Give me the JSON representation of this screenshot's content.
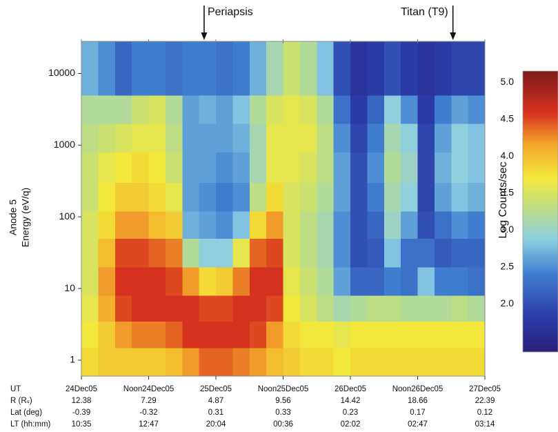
{
  "chart_data": {
    "type": "heatmap",
    "y_label_lines": [
      "Anode 5",
      "Energy (eV/q)"
    ],
    "colorbar_label": "Log Counts/sec",
    "xlim": [
      0,
      72
    ],
    "xticks": [
      {
        "value": 0,
        "label": "24Dec05"
      },
      {
        "value": 12,
        "label": "Noon24Dec05"
      },
      {
        "value": 24,
        "label": "25Dec05"
      },
      {
        "value": 36,
        "label": "Noon25Dec05"
      },
      {
        "value": 48,
        "label": "26Dec05"
      },
      {
        "value": 60,
        "label": "Noon26Dec05"
      },
      {
        "value": 72,
        "label": "27Dec05"
      }
    ],
    "ylim": [
      0.6,
      28000
    ],
    "ylog": true,
    "yticks": [
      1,
      10,
      100,
      1000,
      10000
    ],
    "zlim": [
      1.35,
      5.15
    ],
    "zticks": [
      {
        "value": 2,
        "label": "2.0"
      },
      {
        "value": 2.5,
        "label": "2.5"
      },
      {
        "value": 3,
        "label": "3.0"
      },
      {
        "value": 3.5,
        "label": "3.5"
      },
      {
        "value": 4,
        "label": "4.0"
      },
      {
        "value": 4.5,
        "label": "4.5"
      },
      {
        "value": 5,
        "label": "5.0"
      }
    ],
    "colormap": "jet",
    "x_bins": [
      0,
      3,
      6,
      9,
      12,
      15,
      18,
      21,
      24,
      27,
      30,
      33,
      36,
      39,
      42,
      45,
      48,
      51,
      54,
      57,
      60,
      63,
      66,
      69,
      72
    ],
    "y_bins": [
      0.6,
      1.5,
      3.5,
      8,
      20,
      50,
      120,
      300,
      800,
      2000,
      5000,
      28000
    ],
    "z": [
      [
        3.8,
        3.7,
        3.6,
        3.5,
        3.5,
        3.5,
        3.4,
        3.4,
        3.3,
        3.2,
        2.7
      ],
      [
        3.9,
        3.9,
        4.1,
        4.2,
        4.0,
        3.8,
        3.7,
        3.6,
        3.4,
        3.2,
        2.5
      ],
      [
        3.9,
        4.2,
        4.5,
        4.6,
        4.5,
        4.2,
        3.9,
        3.7,
        3.5,
        3.2,
        2.2
      ],
      [
        3.9,
        4.3,
        4.6,
        4.6,
        4.5,
        4.2,
        3.9,
        3.8,
        3.6,
        3.4,
        2.4
      ],
      [
        3.9,
        4.3,
        4.6,
        4.6,
        4.4,
        4.0,
        3.8,
        3.7,
        3.6,
        3.5,
        2.4
      ],
      [
        4.0,
        4.4,
        4.6,
        4.5,
        4.3,
        3.9,
        3.6,
        3.4,
        3.3,
        3.2,
        2.3
      ],
      [
        4.2,
        4.6,
        4.6,
        4.2,
        3.2,
        2.7,
        2.6,
        2.6,
        2.6,
        2.6,
        2.4
      ],
      [
        4.4,
        4.6,
        4.5,
        3.8,
        2.9,
        2.6,
        2.5,
        2.6,
        2.6,
        2.7,
        2.4
      ],
      [
        4.4,
        4.6,
        4.5,
        3.9,
        2.9,
        2.5,
        2.4,
        2.5,
        2.6,
        2.6,
        2.3
      ],
      [
        4.3,
        4.6,
        4.6,
        4.3,
        3.6,
        2.8,
        2.5,
        2.6,
        2.7,
        2.8,
        2.4
      ],
      [
        4.2,
        4.5,
        4.6,
        4.6,
        4.4,
        3.8,
        3.3,
        3.1,
        3.1,
        3.2,
        2.7
      ],
      [
        4.0,
        4.2,
        4.5,
        4.6,
        4.5,
        4.2,
        3.8,
        3.6,
        3.6,
        3.5,
        3.1
      ],
      [
        3.9,
        3.8,
        3.7,
        3.6,
        3.5,
        3.5,
        3.5,
        3.6,
        3.6,
        3.6,
        3.4
      ],
      [
        3.8,
        3.7,
        3.5,
        3.4,
        3.3,
        3.3,
        3.4,
        3.5,
        3.6,
        3.5,
        3.2
      ],
      [
        3.8,
        3.7,
        3.3,
        3.2,
        3.1,
        3.1,
        3.2,
        3.3,
        3.3,
        3.2,
        2.8
      ],
      [
        3.7,
        3.6,
        3.1,
        2.6,
        2.5,
        2.5,
        2.6,
        2.6,
        2.5,
        2.3,
        2.0
      ],
      [
        3.8,
        3.7,
        3.2,
        2.2,
        2.0,
        2.0,
        2.0,
        2.0,
        1.9,
        1.8,
        1.7
      ],
      [
        3.8,
        3.7,
        3.3,
        2.2,
        2.1,
        2.2,
        2.4,
        2.5,
        2.4,
        2.2,
        1.8
      ],
      [
        3.8,
        3.7,
        3.3,
        2.4,
        2.8,
        3.0,
        3.1,
        3.2,
        3.1,
        2.9,
        2.0
      ],
      [
        3.8,
        3.7,
        3.2,
        2.3,
        2.3,
        2.6,
        2.9,
        3.0,
        2.9,
        2.5,
        1.8
      ],
      [
        3.8,
        3.7,
        3.2,
        2.8,
        2.3,
        2.0,
        1.9,
        1.9,
        1.9,
        1.8,
        1.7
      ],
      [
        3.8,
        3.7,
        3.2,
        2.4,
        2.1,
        2.3,
        2.6,
        2.7,
        2.6,
        2.4,
        1.8
      ],
      [
        3.8,
        3.7,
        3.3,
        2.4,
        2.2,
        2.5,
        2.8,
        2.9,
        2.9,
        2.6,
        1.9
      ],
      [
        3.8,
        3.7,
        3.2,
        2.3,
        2.2,
        2.4,
        2.7,
        2.8,
        2.8,
        2.5,
        1.9
      ]
    ],
    "annotations": [
      {
        "text": "Periapsis",
        "x": 21.9,
        "side": "right"
      },
      {
        "text": "Titan (T9)",
        "x": 66.3,
        "side": "left"
      }
    ],
    "ephemeris": [
      {
        "label": "UT"
      },
      {
        "label": "R (Rₛ)",
        "values": [
          "12.38",
          "7.29",
          "4.87",
          "9.56",
          "14.42",
          "18.66",
          "22.39"
        ]
      },
      {
        "label": "Lat (deg)",
        "values": [
          "-0.39",
          "-0.32",
          "0.31",
          "0.33",
          "0.23",
          "0.17",
          "0.12"
        ]
      },
      {
        "label": "LT (hh:mm)",
        "values": [
          "10:35",
          "12:47",
          "20:04",
          "00:36",
          "02:02",
          "02:47",
          "03:14"
        ]
      }
    ]
  }
}
